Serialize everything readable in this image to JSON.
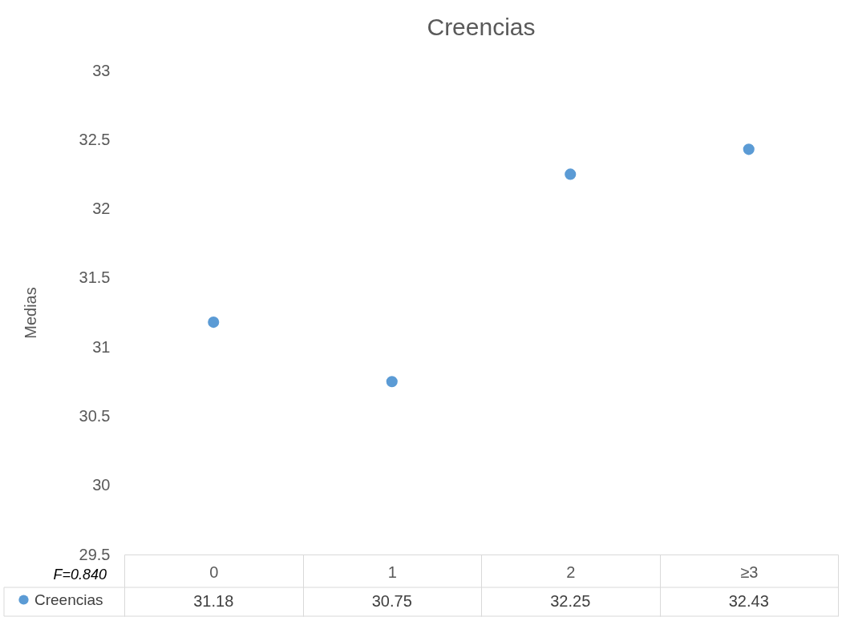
{
  "chart_data": {
    "type": "scatter",
    "title": "Creencias",
    "ylabel": "Medias",
    "categories": [
      "0",
      "1",
      "2",
      "≥3"
    ],
    "series": [
      {
        "name": "Creencias",
        "color": "#5b9bd5",
        "values": [
          31.18,
          30.75,
          32.25,
          32.43
        ]
      }
    ],
    "ylim": [
      29.5,
      33
    ],
    "yticks": [
      29.5,
      30,
      30.5,
      31,
      31.5,
      32,
      32.5,
      33
    ],
    "data_labels": true,
    "grid": false,
    "legend": "bottom left",
    "marker": "circle",
    "annotations": [
      "F=0.840"
    ]
  }
}
